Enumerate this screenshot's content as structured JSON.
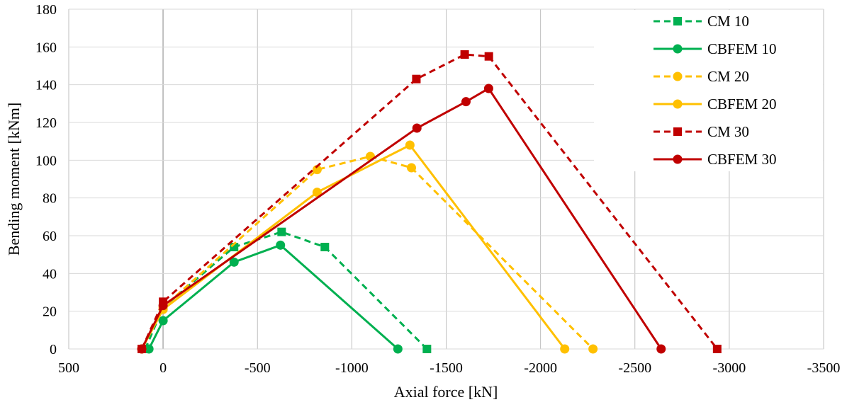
{
  "chart_data": {
    "type": "line",
    "title": "",
    "xlabel": "Axial force [kN]",
    "ylabel": "Bending moment [kNm]",
    "xlim": [
      500,
      -3500
    ],
    "ylim": [
      0,
      180
    ],
    "xticks": [
      500,
      0,
      -500,
      -1000,
      -1500,
      -2000,
      -2500,
      -3000,
      -3500
    ],
    "yticks": [
      0,
      20,
      40,
      60,
      80,
      100,
      120,
      140,
      160,
      180
    ],
    "grid": true,
    "legend": "top-right",
    "series": [
      {
        "name": "CM 10",
        "color": "#00b050",
        "dashed": true,
        "marker": "square",
        "x": [
          95,
          0,
          -376,
          -628,
          -857,
          -1398
        ],
        "y": [
          0,
          22,
          54,
          62,
          54,
          0
        ]
      },
      {
        "name": "CBFEM 10",
        "color": "#00b050",
        "dashed": false,
        "marker": "circle",
        "x": [
          75,
          0,
          -376,
          -622,
          -1244
        ],
        "y": [
          0,
          15,
          46,
          55,
          0
        ]
      },
      {
        "name": "CM 20",
        "color": "#ffc000",
        "dashed": true,
        "marker": "circle",
        "x": [
          113,
          0,
          -816,
          -1098,
          -1316,
          -2278
        ],
        "y": [
          0,
          22,
          95,
          102,
          96,
          0
        ]
      },
      {
        "name": "CBFEM 20",
        "color": "#ffc000",
        "dashed": false,
        "marker": "circle",
        "x": [
          113,
          0,
          -816,
          -1308,
          -2128
        ],
        "y": [
          0,
          21,
          83,
          108,
          0
        ]
      },
      {
        "name": "CM 30",
        "color": "#c00000",
        "dashed": true,
        "marker": "square",
        "x": [
          113,
          0,
          -1342,
          -1598,
          -1726,
          -2936
        ],
        "y": [
          0,
          25,
          143,
          156,
          155,
          0
        ]
      },
      {
        "name": "CBFEM 30",
        "color": "#c00000",
        "dashed": false,
        "marker": "circle",
        "x": [
          113,
          0,
          -1345,
          -1605,
          -1725,
          -2639
        ],
        "y": [
          0,
          23,
          117,
          131,
          138,
          0
        ]
      }
    ]
  }
}
